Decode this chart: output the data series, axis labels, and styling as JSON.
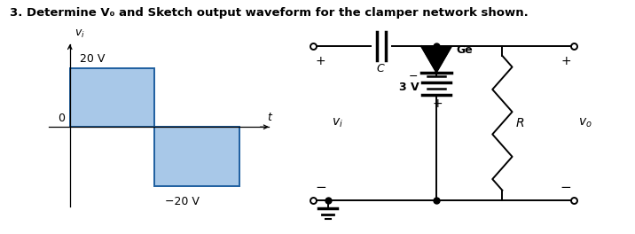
{
  "title": "3. Determine V₀ and Sketch output waveform for the clamper network shown.",
  "title_fontsize": 9.5,
  "bg_color": "#ffffff",
  "waveform": {
    "box_color": "#a8c8e8",
    "box_edge_color": "#1e5fa0",
    "pos_label": "20 V",
    "neg_label": "-20 V"
  },
  "circuit": {
    "cap_label": "C",
    "diode_label": "Ge",
    "battery_label": "3 V",
    "resistor_label": "R",
    "input_label": "v_i",
    "output_label": "v_o"
  }
}
